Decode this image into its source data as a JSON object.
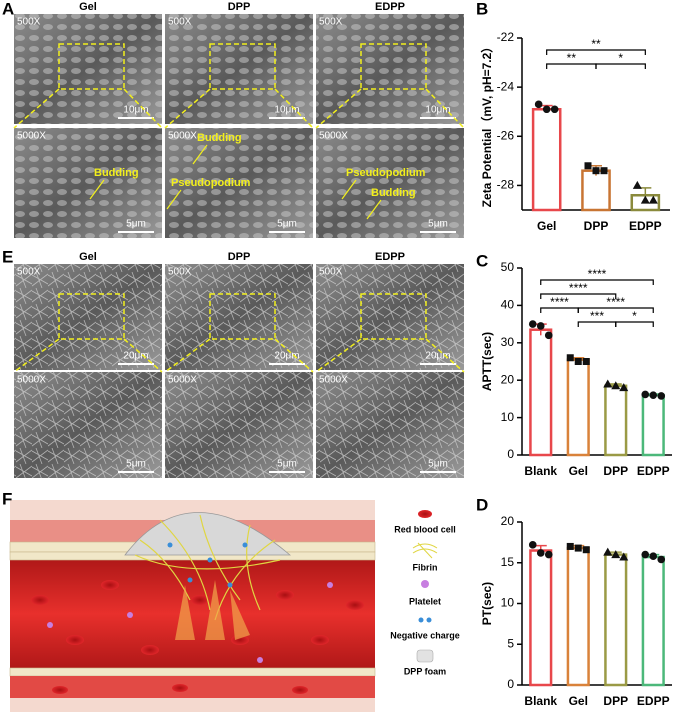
{
  "panel_labels": [
    "A",
    "B",
    "C",
    "D",
    "E",
    "F"
  ],
  "sem_a": {
    "columns": [
      "Gel",
      "DPP",
      "EDPP"
    ],
    "low_mag": "500X",
    "high_mag": "5000X",
    "low_scale": "10μm",
    "high_scale": "5μm",
    "high_annotations": [
      [
        "Budding"
      ],
      [
        "Budding",
        "Pseudopodium"
      ],
      [
        "Pseudopodium",
        "Budding"
      ]
    ]
  },
  "sem_e": {
    "columns": [
      "Gel",
      "DPP",
      "EDPP"
    ],
    "low_mag": "500X",
    "high_mag": "5000X",
    "low_scale": "20μm",
    "high_scale": "5μm"
  },
  "schematic": {
    "legend": [
      "Red blood cell",
      "Fibrin",
      "Platelet",
      "Negative charge",
      "DPP foam"
    ]
  },
  "chart_data": [
    {
      "type": "bar",
      "ylabel": "Zeta Potential（mV, pH=7.2）",
      "categories": [
        "Gel",
        "DPP",
        "EDPP"
      ],
      "values": [
        -24.9,
        -27.4,
        -28.4
      ],
      "errors": [
        0.15,
        0.2,
        0.3
      ],
      "points": [
        [
          -24.7,
          -24.9,
          -24.9
        ],
        [
          -27.2,
          -27.4,
          -27.4
        ],
        [
          -28.0,
          -28.6,
          -28.6
        ]
      ],
      "colors": [
        "#e8474b",
        "#c87533",
        "#8a8a3c"
      ],
      "markers": [
        "circle",
        "square",
        "triangle"
      ],
      "ylim": [
        -29,
        -22
      ],
      "yticks": [
        -28,
        -26,
        -24,
        -22
      ],
      "comparisons": [
        {
          "from": 0,
          "to": 2,
          "label": "**"
        },
        {
          "from": 0,
          "to": 1,
          "label": "**"
        },
        {
          "from": 1,
          "to": 2,
          "label": "*"
        }
      ]
    },
    {
      "type": "bar",
      "ylabel": "APTT(sec)",
      "categories": [
        "Blank",
        "Gel",
        "DPP",
        "EDPP"
      ],
      "values": [
        33.5,
        25.5,
        18.5,
        16
      ],
      "errors": [
        1.5,
        0.5,
        0.5,
        0.3
      ],
      "points": [
        [
          35,
          34.5,
          32
        ],
        [
          26,
          25,
          25
        ],
        [
          19,
          18.5,
          18
        ],
        [
          16.2,
          16,
          15.8
        ]
      ],
      "colors": [
        "#e8474b",
        "#d9823a",
        "#9a9a45",
        "#4cb87a"
      ],
      "markers": [
        "circle",
        "square",
        "triangle",
        "circle"
      ],
      "ylim": [
        0,
        50
      ],
      "yticks": [
        0,
        10,
        20,
        30,
        40,
        50
      ],
      "comparisons": [
        {
          "from": 0,
          "to": 3,
          "label": "****"
        },
        {
          "from": 0,
          "to": 2,
          "label": "****"
        },
        {
          "from": 0,
          "to": 1,
          "label": "****"
        },
        {
          "from": 1,
          "to": 3,
          "label": "****"
        },
        {
          "from": 1,
          "to": 2,
          "label": "***"
        },
        {
          "from": 2,
          "to": 3,
          "label": "*"
        }
      ]
    },
    {
      "type": "bar",
      "ylabel": "PT(sec)",
      "categories": [
        "Blank",
        "Gel",
        "DPP",
        "EDPP"
      ],
      "values": [
        16.5,
        16.8,
        16,
        15.7
      ],
      "errors": [
        0.6,
        0.3,
        0.3,
        0.3
      ],
      "points": [
        [
          17.2,
          16.2,
          16
        ],
        [
          17,
          16.8,
          16.6
        ],
        [
          16.3,
          16,
          15.7
        ],
        [
          16,
          15.8,
          15.4
        ]
      ],
      "colors": [
        "#e8474b",
        "#d9823a",
        "#9a9a45",
        "#4cb87a"
      ],
      "markers": [
        "circle",
        "square",
        "triangle",
        "circle"
      ],
      "ylim": [
        0,
        20
      ],
      "yticks": [
        0,
        5,
        10,
        15,
        20
      ]
    }
  ]
}
